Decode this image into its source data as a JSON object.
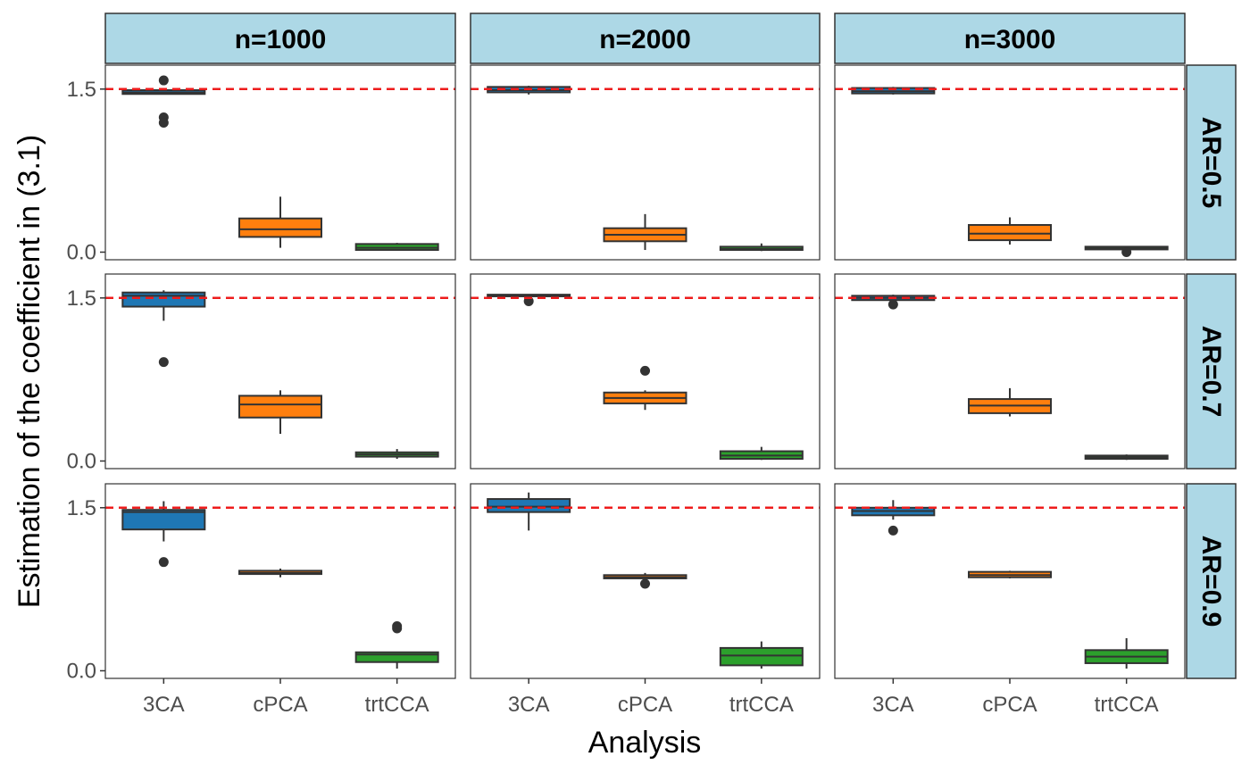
{
  "chart_data": {
    "type": "box",
    "ylabel": "Estimation of the coefficient in (3.1)",
    "xlabel": "Analysis",
    "categories": [
      "3CA",
      "cPCA",
      "trtCCA"
    ],
    "y_ticks": [
      {
        "value": 0.0,
        "label": "0.0"
      },
      {
        "value": 1.5,
        "label": "1.5"
      }
    ],
    "ylim": [
      -0.07,
      1.72
    ],
    "reference_line": {
      "value": 1.5,
      "color": "#ee1c1c",
      "style": "dashed"
    },
    "colors": {
      "3CA": "#1f77b4",
      "cPCA": "#ff7f0e",
      "trtCCA": "#2ca02c",
      "strip_fill": "#add8e6",
      "box_line": "#333333",
      "outlier": "#333333"
    },
    "col_facets": [
      "n=1000",
      "n=2000",
      "n=3000"
    ],
    "row_facets": [
      "AR=0.5",
      "AR=0.7",
      "AR=0.9"
    ],
    "grid": false,
    "legend": "none",
    "panels": [
      {
        "col": 0,
        "row": 0,
        "boxes": [
          {
            "category": "3CA",
            "min": 1.45,
            "q1": 1.455,
            "median": 1.47,
            "q3": 1.49,
            "max": 1.5,
            "outliers": [
              1.58,
              1.24,
              1.19
            ]
          },
          {
            "category": "cPCA",
            "min": 0.04,
            "q1": 0.14,
            "median": 0.21,
            "q3": 0.31,
            "max": 0.51,
            "outliers": []
          },
          {
            "category": "trtCCA",
            "min": 0.015,
            "q1": 0.02,
            "median": 0.04,
            "q3": 0.075,
            "max": 0.085,
            "outliers": []
          }
        ]
      },
      {
        "col": 1,
        "row": 0,
        "boxes": [
          {
            "category": "3CA",
            "min": 1.45,
            "q1": 1.47,
            "median": 1.49,
            "q3": 1.52,
            "max": 1.53,
            "outliers": []
          },
          {
            "category": "cPCA",
            "min": 0.02,
            "q1": 0.1,
            "median": 0.16,
            "q3": 0.22,
            "max": 0.35,
            "outliers": []
          },
          {
            "category": "trtCCA",
            "min": 0.01,
            "q1": 0.02,
            "median": 0.03,
            "q3": 0.05,
            "max": 0.08,
            "outliers": []
          }
        ]
      },
      {
        "col": 2,
        "row": 0,
        "boxes": [
          {
            "category": "3CA",
            "min": 1.45,
            "q1": 1.46,
            "median": 1.48,
            "q3": 1.51,
            "max": 1.52,
            "outliers": []
          },
          {
            "category": "cPCA",
            "min": 0.07,
            "q1": 0.11,
            "median": 0.17,
            "q3": 0.25,
            "max": 0.32,
            "outliers": []
          },
          {
            "category": "trtCCA",
            "min": 0.02,
            "q1": 0.025,
            "median": 0.035,
            "q3": 0.05,
            "max": 0.055,
            "outliers": [
              0.0
            ]
          }
        ]
      },
      {
        "col": 0,
        "row": 1,
        "boxes": [
          {
            "category": "3CA",
            "min": 1.29,
            "q1": 1.42,
            "median": 1.52,
            "q3": 1.55,
            "max": 1.57,
            "outliers": [
              0.91
            ]
          },
          {
            "category": "cPCA",
            "min": 0.25,
            "q1": 0.4,
            "median": 0.52,
            "q3": 0.6,
            "max": 0.65,
            "outliers": []
          },
          {
            "category": "trtCCA",
            "min": 0.02,
            "q1": 0.04,
            "median": 0.06,
            "q3": 0.08,
            "max": 0.11,
            "outliers": []
          }
        ]
      },
      {
        "col": 1,
        "row": 1,
        "boxes": [
          {
            "category": "3CA",
            "min": 1.51,
            "q1": 1.515,
            "median": 1.52,
            "q3": 1.53,
            "max": 1.535,
            "outliers": [
              1.47
            ]
          },
          {
            "category": "cPCA",
            "min": 0.47,
            "q1": 0.53,
            "median": 0.58,
            "q3": 0.63,
            "max": 0.65,
            "outliers": [
              0.83
            ]
          },
          {
            "category": "trtCCA",
            "min": 0.01,
            "q1": 0.02,
            "median": 0.05,
            "q3": 0.09,
            "max": 0.13,
            "outliers": []
          }
        ]
      },
      {
        "col": 2,
        "row": 1,
        "boxes": [
          {
            "category": "3CA",
            "min": 1.47,
            "q1": 1.48,
            "median": 1.5,
            "q3": 1.52,
            "max": 1.53,
            "outliers": [
              1.44
            ]
          },
          {
            "category": "cPCA",
            "min": 0.41,
            "q1": 0.44,
            "median": 0.51,
            "q3": 0.57,
            "max": 0.67,
            "outliers": []
          },
          {
            "category": "trtCCA",
            "min": 0.01,
            "q1": 0.02,
            "median": 0.035,
            "q3": 0.05,
            "max": 0.06,
            "outliers": []
          }
        ]
      },
      {
        "col": 0,
        "row": 2,
        "boxes": [
          {
            "category": "3CA",
            "min": 1.19,
            "q1": 1.3,
            "median": 1.46,
            "q3": 1.48,
            "max": 1.56,
            "outliers": [
              1.0
            ]
          },
          {
            "category": "cPCA",
            "min": 0.86,
            "q1": 0.89,
            "median": 0.9,
            "q3": 0.92,
            "max": 0.94,
            "outliers": []
          },
          {
            "category": "trtCCA",
            "min": 0.02,
            "q1": 0.08,
            "median": 0.15,
            "q3": 0.17,
            "max": 0.17,
            "outliers": [
              0.41,
              0.39
            ]
          }
        ]
      },
      {
        "col": 1,
        "row": 2,
        "boxes": [
          {
            "category": "3CA",
            "min": 1.29,
            "q1": 1.46,
            "median": 1.51,
            "q3": 1.58,
            "max": 1.64,
            "outliers": []
          },
          {
            "category": "cPCA",
            "min": 0.83,
            "q1": 0.85,
            "median": 0.86,
            "q3": 0.88,
            "max": 0.9,
            "outliers": [
              0.8
            ]
          },
          {
            "category": "trtCCA",
            "min": 0.02,
            "q1": 0.05,
            "median": 0.14,
            "q3": 0.21,
            "max": 0.27,
            "outliers": []
          }
        ]
      },
      {
        "col": 2,
        "row": 2,
        "boxes": [
          {
            "category": "3CA",
            "min": 1.39,
            "q1": 1.43,
            "median": 1.47,
            "q3": 1.5,
            "max": 1.57,
            "outliers": [
              1.29
            ]
          },
          {
            "category": "cPCA",
            "min": 0.85,
            "q1": 0.86,
            "median": 0.88,
            "q3": 0.91,
            "max": 0.92,
            "outliers": []
          },
          {
            "category": "trtCCA",
            "min": 0.02,
            "q1": 0.07,
            "median": 0.13,
            "q3": 0.19,
            "max": 0.3,
            "outliers": []
          }
        ]
      }
    ]
  }
}
